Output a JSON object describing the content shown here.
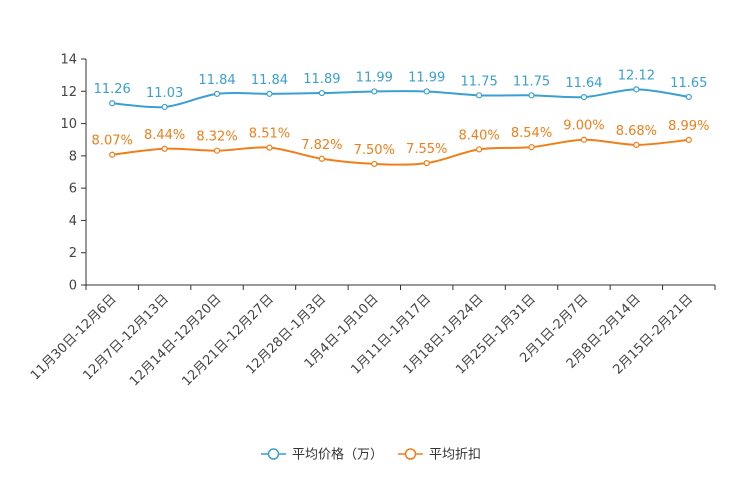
{
  "chart_data": {
    "type": "line",
    "title": "",
    "xlabel": "",
    "ylabel": "",
    "ylim": [
      0,
      14
    ],
    "yticks": [
      0,
      2,
      4,
      6,
      8,
      10,
      12,
      14
    ],
    "grid": false,
    "legend_position": "bottom-center",
    "categories": [
      "11月30日-12月6日",
      "12月7日-12月13日",
      "12月14日-12月20日",
      "12月21日-12月27日",
      "12月28日-1月3日",
      "1月4日-1月10日",
      "1月11日-1月17日",
      "1月18日-1月24日",
      "1月25日-1月31日",
      "2月1日-2月7日",
      "2月8日-2月14日",
      "2月15日-2月21日"
    ],
    "series": [
      {
        "name": "平均价格（万）",
        "color": "#3a9fd1",
        "values": [
          11.26,
          11.03,
          11.84,
          11.84,
          11.89,
          11.99,
          11.99,
          11.75,
          11.75,
          11.64,
          12.12,
          11.65
        ],
        "labels": [
          "11.26",
          "11.03",
          "11.84",
          "11.84",
          "11.89",
          "11.99",
          "11.99",
          "11.75",
          "11.75",
          "11.64",
          "12.12",
          "11.65"
        ]
      },
      {
        "name": "平均折扣",
        "color": "#f07f1a",
        "values": [
          8.07,
          8.44,
          8.32,
          8.51,
          7.82,
          7.5,
          7.55,
          8.4,
          8.54,
          9.0,
          8.68,
          8.99
        ],
        "labels": [
          "8.07%",
          "8.44%",
          "8.32%",
          "8.51%",
          "7.82%",
          "7.50%",
          "7.55%",
          "8.40%",
          "8.54%",
          "9.00%",
          "8.68%",
          "8.99%"
        ]
      }
    ]
  }
}
